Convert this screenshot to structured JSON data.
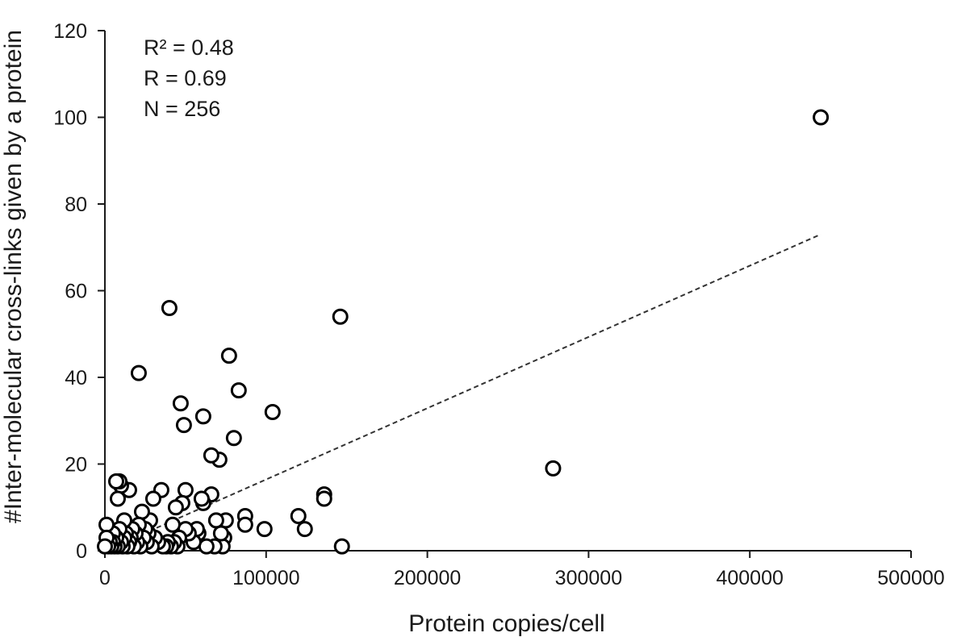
{
  "chart_data": {
    "type": "scatter",
    "title": "",
    "xlabel": "Protein copies/cell",
    "ylabel": "#Inter-molecular cross-links given by a protein",
    "xlim": [
      0,
      500000
    ],
    "ylim": [
      0,
      120
    ],
    "x_ticks": [
      "0",
      "100000",
      "200000",
      "300000",
      "400000",
      "500000"
    ],
    "y_ticks": [
      "0",
      "20",
      "40",
      "60",
      "80",
      "100",
      "120"
    ],
    "x_tick_values": [
      0,
      100000,
      200000,
      300000,
      400000,
      500000
    ],
    "y_tick_values": [
      0,
      20,
      40,
      60,
      80,
      100,
      120
    ],
    "grid": false,
    "annotations": [
      "R² = 0.48",
      "R = 0.69",
      "N = 256"
    ],
    "trendline": {
      "style": "dashed",
      "x": [
        0,
        444000
      ],
      "y": [
        0,
        73
      ]
    },
    "series": [
      {
        "points": [
          [
            444000,
            100
          ],
          [
            278000,
            19
          ],
          [
            146000,
            54
          ],
          [
            147000,
            1
          ],
          [
            136000,
            13
          ],
          [
            136000,
            12
          ],
          [
            120000,
            8
          ],
          [
            124000,
            5
          ],
          [
            104000,
            32
          ],
          [
            99000,
            5
          ],
          [
            87000,
            8
          ],
          [
            87000,
            6
          ],
          [
            83000,
            37
          ],
          [
            80000,
            26
          ],
          [
            77000,
            45
          ],
          [
            75000,
            7
          ],
          [
            74000,
            3
          ],
          [
            73000,
            1
          ],
          [
            72000,
            4
          ],
          [
            71000,
            21
          ],
          [
            69000,
            7
          ],
          [
            68000,
            1
          ],
          [
            66000,
            22
          ],
          [
            66000,
            13
          ],
          [
            63000,
            1
          ],
          [
            61000,
            31
          ],
          [
            61000,
            11
          ],
          [
            60000,
            12
          ],
          [
            58000,
            4
          ],
          [
            57000,
            5
          ],
          [
            55000,
            2
          ],
          [
            52000,
            4
          ],
          [
            50000,
            5
          ],
          [
            50000,
            14
          ],
          [
            49000,
            29
          ],
          [
            48000,
            11
          ],
          [
            47000,
            34
          ],
          [
            46000,
            3
          ],
          [
            45000,
            1
          ],
          [
            44000,
            10
          ],
          [
            43000,
            2
          ],
          [
            42000,
            6
          ],
          [
            41000,
            1
          ],
          [
            40000,
            56
          ],
          [
            39000,
            2
          ],
          [
            38000,
            1
          ],
          [
            36000,
            1
          ],
          [
            35000,
            14
          ],
          [
            33000,
            2
          ],
          [
            31000,
            3
          ],
          [
            30000,
            12
          ],
          [
            29000,
            1
          ],
          [
            28000,
            7
          ],
          [
            27000,
            4
          ],
          [
            26000,
            2
          ],
          [
            25000,
            5
          ],
          [
            24000,
            3
          ],
          [
            23000,
            9
          ],
          [
            22000,
            1
          ],
          [
            21000,
            41
          ],
          [
            21000,
            6
          ],
          [
            20000,
            2
          ],
          [
            19000,
            4
          ],
          [
            18000,
            1
          ],
          [
            17000,
            5
          ],
          [
            16000,
            3
          ],
          [
            15000,
            14
          ],
          [
            15000,
            2
          ],
          [
            14000,
            1
          ],
          [
            13000,
            4
          ],
          [
            12000,
            7
          ],
          [
            12000,
            3
          ],
          [
            11000,
            1
          ],
          [
            10000,
            2
          ],
          [
            10000,
            15
          ],
          [
            9000,
            5
          ],
          [
            9000,
            16
          ],
          [
            8000,
            1
          ],
          [
            8000,
            12
          ],
          [
            7000,
            16
          ],
          [
            7000,
            3
          ],
          [
            6000,
            1
          ],
          [
            5000,
            4
          ],
          [
            5000,
            2
          ],
          [
            4000,
            1
          ],
          [
            3000,
            2
          ],
          [
            2000,
            1
          ],
          [
            1000,
            6
          ],
          [
            1000,
            3
          ],
          [
            0,
            1
          ]
        ]
      }
    ]
  }
}
